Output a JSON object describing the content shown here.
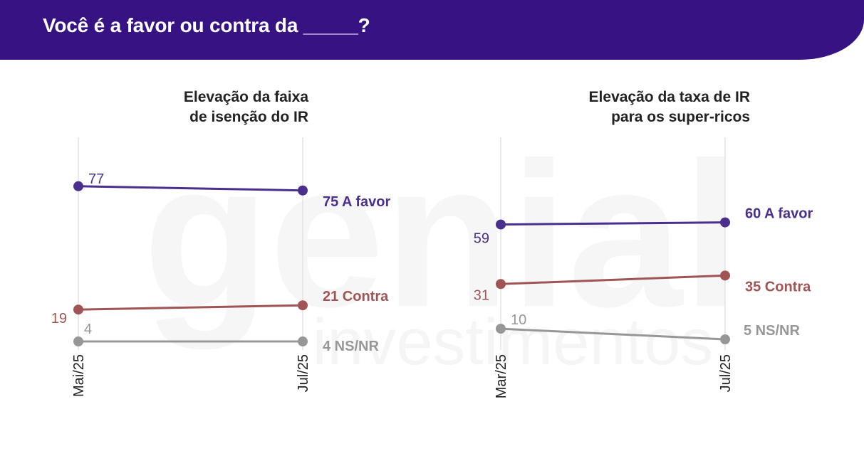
{
  "header": {
    "title": "Você é a favor ou contra da _____?"
  },
  "watermark": {
    "line1": "genial",
    "line2": "investimentos"
  },
  "chart_data": [
    {
      "type": "line",
      "title_lines": [
        "Elevação da faixa",
        "de isenção do IR"
      ],
      "categories": [
        "Mai/25",
        "Jul/25"
      ],
      "ylim": [
        0,
        100
      ],
      "grid": true,
      "series": [
        {
          "name": "A favor",
          "values": [
            77,
            75
          ],
          "color": "#4a2f8f",
          "start_label": "77",
          "end_label": "75 A favor"
        },
        {
          "name": "Contra",
          "values": [
            19,
            21
          ],
          "color": "#a05454",
          "start_label": "19",
          "end_label": "21 Contra"
        },
        {
          "name": "NS/NR",
          "values": [
            4,
            4
          ],
          "color": "#979797",
          "start_label": "4",
          "end_label": "4 NS/NR"
        }
      ]
    },
    {
      "type": "line",
      "title_lines": [
        "Elevação da taxa de IR",
        "para os super-ricos"
      ],
      "categories": [
        "Mar/25",
        "Jul/25"
      ],
      "ylim": [
        0,
        100
      ],
      "grid": true,
      "series": [
        {
          "name": "A favor",
          "values": [
            59,
            60
          ],
          "color": "#4a2f8f",
          "start_label": "59",
          "end_label": "60 A favor"
        },
        {
          "name": "Contra",
          "values": [
            31,
            35
          ],
          "color": "#a05454",
          "start_label": "31",
          "end_label": "35 Contra"
        },
        {
          "name": "NS/NR",
          "values": [
            10,
            5
          ],
          "color": "#979797",
          "start_label": "10",
          "end_label": "5 NS/NR"
        }
      ]
    }
  ]
}
